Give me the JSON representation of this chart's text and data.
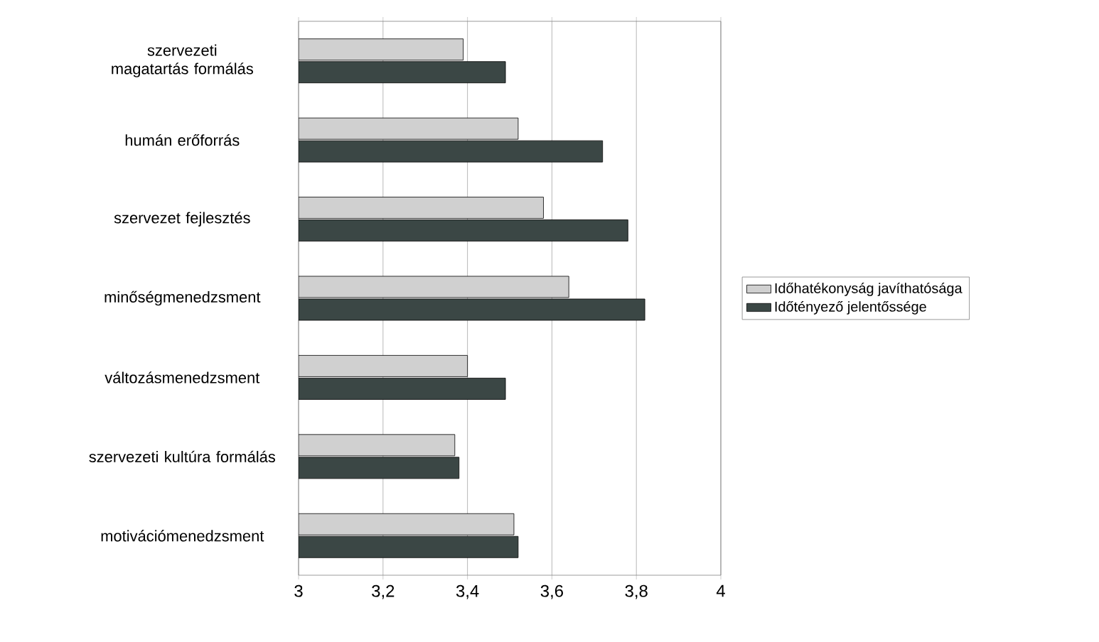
{
  "chart_data": {
    "type": "bar",
    "orientation": "horizontal",
    "categories": [
      "szervezeti magatartás formálás",
      "humán erőforrás",
      "szervezet fejlesztés",
      "minőségmenedzsment",
      "változásmenedzsment",
      "szervezeti kultúra formálás",
      "motivációmenedzsment"
    ],
    "series": [
      {
        "name": "Időhatékonyság javíthatósága",
        "color": "#d0d0d0",
        "values": [
          3.39,
          3.52,
          3.58,
          3.64,
          3.4,
          3.37,
          3.51
        ]
      },
      {
        "name": "Időtényező jelentőssége",
        "color": "#3b4745",
        "values": [
          3.49,
          3.72,
          3.78,
          3.82,
          3.49,
          3.38,
          3.52
        ]
      }
    ],
    "xlim": [
      3,
      4
    ],
    "xticks": [
      3,
      {
        "value": 3.2,
        "label": "3,2"
      },
      {
        "value": 3.4,
        "label": "3,4"
      },
      {
        "value": 3.6,
        "label": "3,6"
      },
      {
        "value": 3.8,
        "label": "3,8"
      },
      4
    ],
    "grid": "x",
    "legend": "right"
  }
}
